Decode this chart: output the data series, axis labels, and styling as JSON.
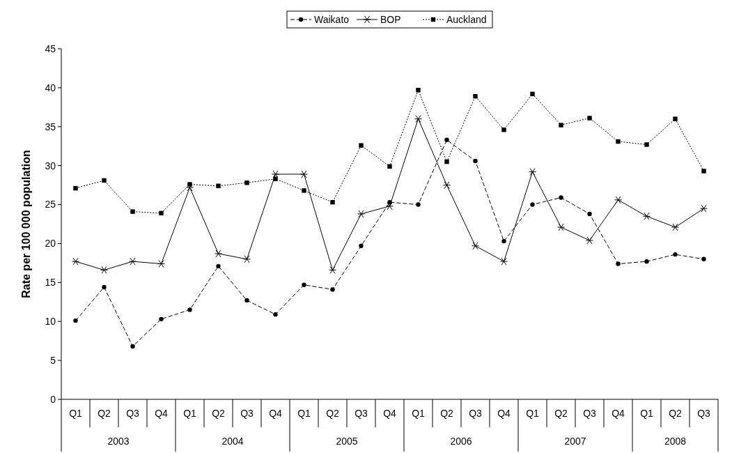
{
  "chart_data": {
    "type": "line",
    "ylabel": "Rate per 100 000 population",
    "categories": [
      "Q1",
      "Q2",
      "Q3",
      "Q4",
      "Q1",
      "Q2",
      "Q3",
      "Q4",
      "Q1",
      "Q2",
      "Q3",
      "Q4",
      "Q1",
      "Q2",
      "Q3",
      "Q4",
      "Q1",
      "Q2",
      "Q3",
      "Q4",
      "Q1",
      "Q2",
      "Q3"
    ],
    "annotations": [
      "2003",
      "2004",
      "2005",
      "2006",
      "2007",
      "2008"
    ],
    "ylim": [
      0,
      45
    ],
    "yticks": [
      0,
      5,
      10,
      15,
      20,
      25,
      30,
      35,
      40,
      45
    ],
    "grid": false,
    "legend": "top",
    "series": [
      {
        "name": "Waikato",
        "color": "#000000",
        "marker": "circle",
        "line_style": "dashed",
        "values": [
          10.1,
          14.4,
          6.8,
          10.3,
          11.5,
          17.1,
          12.7,
          10.9,
          14.7,
          14.1,
          19.7,
          25.3,
          25.0,
          33.3,
          30.6,
          20.3,
          25.0,
          25.9,
          23.8,
          17.4,
          17.7,
          18.6,
          18.0
        ]
      },
      {
        "name": "BOP",
        "color": "#000000",
        "marker": "cross",
        "line_style": "solid",
        "values": [
          17.7,
          16.6,
          17.7,
          17.4,
          27.2,
          18.7,
          18.0,
          28.9,
          28.9,
          16.6,
          23.8,
          24.8,
          36.0,
          27.5,
          19.7,
          17.7,
          29.2,
          22.1,
          20.4,
          25.6,
          23.5,
          22.1,
          24.5
        ]
      },
      {
        "name": "Auckland",
        "color": "#000000",
        "marker": "square",
        "line_style": "dotted",
        "values": [
          27.1,
          28.1,
          24.1,
          23.9,
          27.6,
          27.4,
          27.8,
          28.3,
          26.8,
          25.3,
          32.6,
          29.9,
          39.7,
          30.5,
          38.9,
          34.6,
          39.2,
          35.2,
          36.1,
          33.1,
          32.7,
          36.0,
          29.3
        ]
      }
    ]
  }
}
